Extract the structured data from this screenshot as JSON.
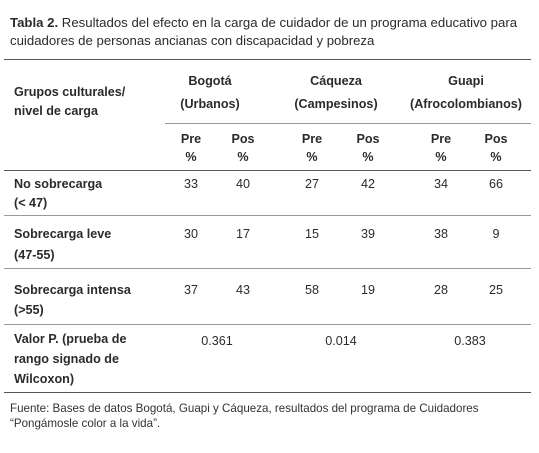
{
  "caption": {
    "label": "Tabla 2.",
    "text": " Resultados del efecto en la carga de cuidador de un programa educativo para cuidadores de personas ancianas con discapacidad y pobreza"
  },
  "header": {
    "row_label_line1": "Grupos culturales/",
    "row_label_line2": "nivel de carga",
    "groups": [
      {
        "name": "Bogotá",
        "sub": "(Urbanos)"
      },
      {
        "name": "Cáqueza",
        "sub": "(Campesinos)"
      },
      {
        "name": "Guapi",
        "sub": "(Afrocolombianos)"
      }
    ],
    "pre_label": "Pre",
    "pos_label": "Pos",
    "pct": "%"
  },
  "rows": [
    {
      "label1": "No sobrecarga",
      "label2": "(< 47)",
      "values": [
        "33",
        "40",
        "27",
        "42",
        "34",
        "66"
      ]
    },
    {
      "label1": "Sobrecarga leve",
      "label2": "(47-55)",
      "values": [
        "30",
        "17",
        "15",
        "39",
        "38",
        "9"
      ]
    },
    {
      "label1": "Sobrecarga intensa",
      "label2": "(>55)",
      "values": [
        "37",
        "43",
        "58",
        "19",
        "28",
        "25"
      ]
    }
  ],
  "pvalue": {
    "label1": "Valor P. (prueba de",
    "label2": "rango signado de",
    "label3": "Wilcoxon)",
    "values": [
      "0.361",
      "0.014",
      "0.383"
    ]
  },
  "source": "Fuente: Bases de datos Bogotá, Guapi y Cáqueza, resultados del programa de Cuidadores “Pongámosle color a la vida”."
}
